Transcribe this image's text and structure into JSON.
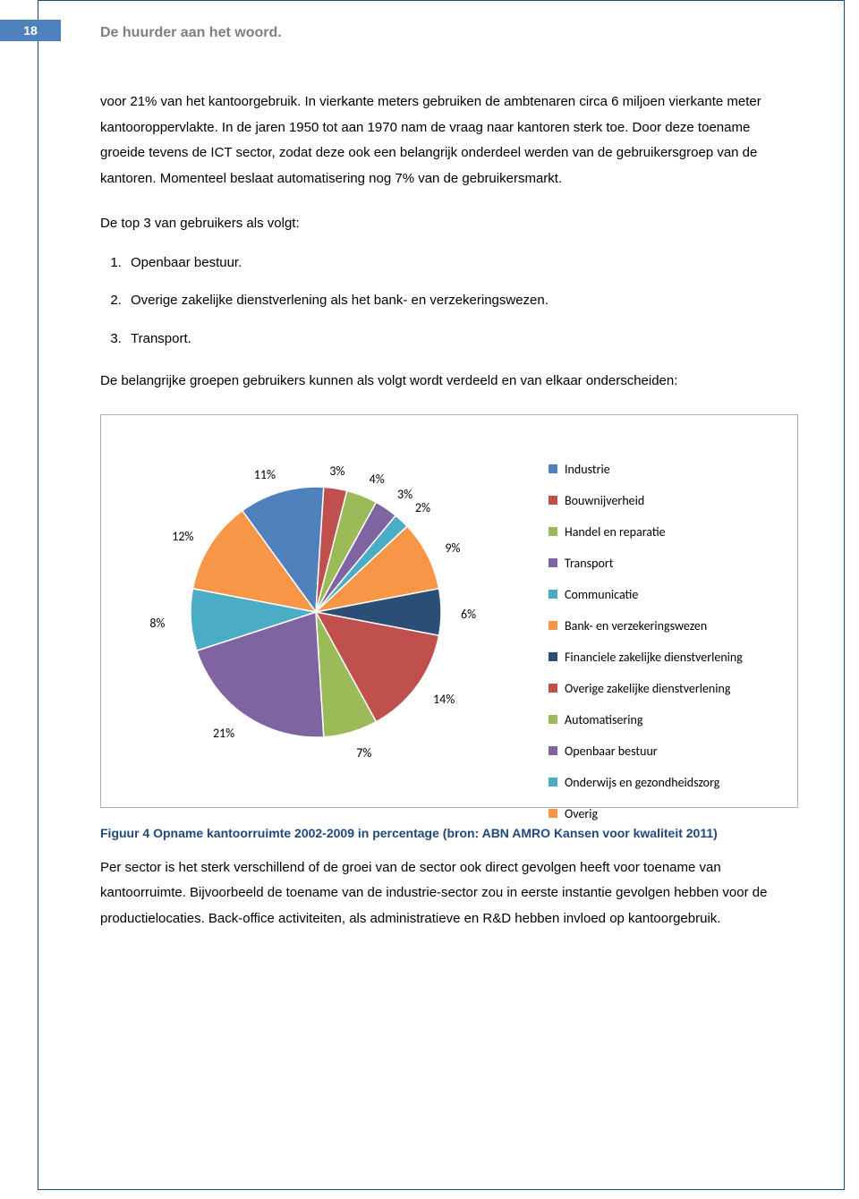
{
  "page_number": "18",
  "running_head": "De huurder aan het woord.",
  "paragraph1": "voor 21% van het kantoorgebruik. In vierkante meters gebruiken de ambtenaren circa 6 miljoen vierkante meter kantooroppervlakte. In de jaren 1950 tot aan 1970 nam de vraag naar kantoren sterk toe. Door deze toename groeide tevens de ICT sector, zodat deze ook een belangrijk onderdeel werden van de gebruikersgroep van de kantoren. Momenteel beslaat automatisering nog 7% van de gebruikersmarkt.",
  "list_intro": "De top 3 van gebruikers als volgt:",
  "top3": [
    "Openbaar bestuur.",
    "Overige zakelijke dienstverlening als het bank- en verzekeringswezen.",
    "Transport."
  ],
  "paragraph2": "De belangrijke groepen gebruikers kunnen als volgt wordt verdeeld en van elkaar onderscheiden:",
  "caption": "Figuur 4 Opname kantoorruimte 2002-2009 in percentage (bron: ABN AMRO Kansen voor kwaliteit 2011)",
  "paragraph3": "Per sector is het sterk verschillend of de groei van de sector ook direct gevolgen heeft voor toename van kantoorruimte. Bijvoorbeeld de toename van de industrie-sector zou in eerste instantie gevolgen hebben voor de productielocaties. Back-office activiteiten, als administratieve en R&D hebben invloed op kantoorgebruik.",
  "chart": {
    "type": "pie",
    "background_color": "#ffffff",
    "border_color": "#b0b0b0",
    "label_font_family": "Calibri",
    "label_font_size": 14,
    "label_color": "#000000",
    "legend_font_size": 14,
    "slice_border_color": "#ffffff",
    "slice_border_width": 1.5,
    "start_angle_deg": -126,
    "slices": [
      {
        "label": "Industrie",
        "value": 11,
        "color": "#4f81bd",
        "pct_label": "11%"
      },
      {
        "label": "Bouwnijverheid",
        "value": 3,
        "color": "#c0504d",
        "pct_label": "3%"
      },
      {
        "label": "Handel en reparatie",
        "value": 4,
        "color": "#9bbb59",
        "pct_label": "4%"
      },
      {
        "label": "Transport",
        "value": 3,
        "color": "#8064a2",
        "pct_label": "3%"
      },
      {
        "label": "Communicatie",
        "value": 2,
        "color": "#4bacc6",
        "pct_label": "2%"
      },
      {
        "label": "Bank- en verzekeringswezen",
        "value": 9,
        "color": "#f79646",
        "pct_label": "9%"
      },
      {
        "label": "Financiele zakelijke dienstverlening",
        "value": 6,
        "color": "#2c4d75",
        "pct_label": "6%"
      },
      {
        "label": "Overige zakelijke dienstverlening",
        "value": 14,
        "color": "#c0504d",
        "pct_label": "14%"
      },
      {
        "label": "Automatisering",
        "value": 7,
        "color": "#9bbb59",
        "pct_label": "7%"
      },
      {
        "label": "Openbaar bestuur",
        "value": 21,
        "color": "#8064a2",
        "pct_label": "21%"
      },
      {
        "label": "Onderwijs en gezondheidszorg",
        "value": 8,
        "color": "#4bacc6",
        "pct_label": "8%"
      },
      {
        "label": "Overig",
        "value": 12,
        "color": "#f79646",
        "pct_label": "12%"
      }
    ]
  }
}
